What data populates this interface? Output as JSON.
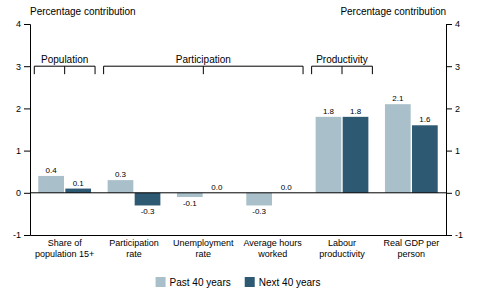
{
  "chart_data": {
    "type": "bar",
    "categories": [
      "Share of\npopulation 15+",
      "Participation\nrate",
      "Unemployment\nrate",
      "Average hours\nworked",
      "Labour\nproductivity",
      "Real GDP per\nperson"
    ],
    "series": [
      {
        "name": "Past 40 years",
        "color": "#a9bfc9",
        "values": [
          0.4,
          0.3,
          -0.1,
          -0.3,
          1.8,
          2.1
        ],
        "value_labels": [
          "0.4",
          "0.3",
          "-0.1",
          "-0.3",
          "1.8",
          "2.1"
        ]
      },
      {
        "name": "Next 40 years",
        "color": "#2e5973",
        "values": [
          0.1,
          -0.3,
          0.0,
          0.0,
          1.8,
          1.6
        ],
        "value_labels": [
          "0.1",
          "-0.3",
          "0.0",
          "0.0",
          "1.8",
          "1.6"
        ]
      }
    ],
    "ylim": [
      -1,
      4
    ],
    "yticks": [
      -1,
      0,
      1,
      2,
      3,
      4
    ],
    "y2lim": [
      -1,
      4
    ],
    "y2ticks": [
      -1,
      0,
      1,
      2,
      3,
      4
    ],
    "ylabel": "Percentage contribution",
    "y2label": "Percentage contribution",
    "data_labels": true,
    "legend": "bottom",
    "annotations": [
      {
        "text": "Population",
        "first": "Share of\npopulation 15+",
        "last": "Share of\npopulation 15+"
      },
      {
        "text": "Participation",
        "first": "Participation\nrate",
        "last": "Average hours\nworked"
      },
      {
        "text": "Productivity",
        "first": "Labour\nproductivity",
        "last": "Labour\nproductivity"
      }
    ]
  }
}
